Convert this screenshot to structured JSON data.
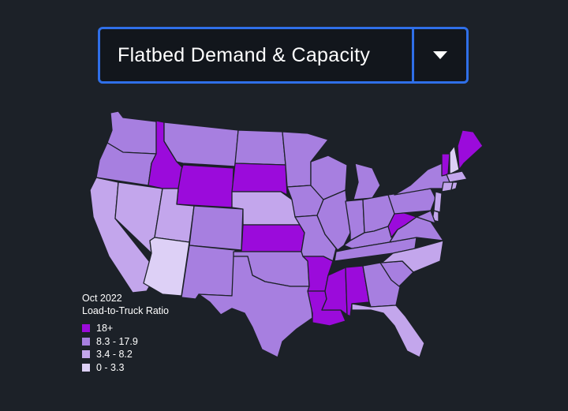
{
  "selector": {
    "label": "Flatbed Demand & Capacity",
    "icon": "chevron-down-icon"
  },
  "legend": {
    "period": "Oct 2022",
    "metric": "Load-to-Truck Ratio",
    "items": [
      {
        "label": "18+",
        "color": "#9b0bdb"
      },
      {
        "label": "8.3 - 17.9",
        "color": "#a77fe0"
      },
      {
        "label": "3.4 - 8.2",
        "color": "#c3a6ec"
      },
      {
        "label": "0 - 3.3",
        "color": "#ddd0f6"
      }
    ]
  },
  "map": {
    "border_color": "#1c2128",
    "states": [
      {
        "code": "WA",
        "class": 1
      },
      {
        "code": "OR",
        "class": 1
      },
      {
        "code": "CA",
        "class": 2
      },
      {
        "code": "NV",
        "class": 2
      },
      {
        "code": "ID",
        "class": 0
      },
      {
        "code": "MT",
        "class": 1
      },
      {
        "code": "WY",
        "class": 0
      },
      {
        "code": "UT",
        "class": 2
      },
      {
        "code": "AZ",
        "class": 3
      },
      {
        "code": "CO",
        "class": 1
      },
      {
        "code": "NM",
        "class": 1
      },
      {
        "code": "ND",
        "class": 1
      },
      {
        "code": "SD",
        "class": 0
      },
      {
        "code": "NE",
        "class": 2
      },
      {
        "code": "KS",
        "class": 0
      },
      {
        "code": "OK",
        "class": 1
      },
      {
        "code": "TX",
        "class": 1
      },
      {
        "code": "MN",
        "class": 1
      },
      {
        "code": "IA",
        "class": 1
      },
      {
        "code": "MO",
        "class": 1
      },
      {
        "code": "AR",
        "class": 0
      },
      {
        "code": "LA",
        "class": 0
      },
      {
        "code": "WI",
        "class": 1
      },
      {
        "code": "IL",
        "class": 1
      },
      {
        "code": "MI",
        "class": 1
      },
      {
        "code": "IN",
        "class": 1
      },
      {
        "code": "OH",
        "class": 1
      },
      {
        "code": "KY",
        "class": 1
      },
      {
        "code": "TN",
        "class": 1
      },
      {
        "code": "MS",
        "class": 0
      },
      {
        "code": "AL",
        "class": 0
      },
      {
        "code": "GA",
        "class": 1
      },
      {
        "code": "FL",
        "class": 2
      },
      {
        "code": "SC",
        "class": 1
      },
      {
        "code": "NC",
        "class": 2
      },
      {
        "code": "VA",
        "class": 1
      },
      {
        "code": "WV",
        "class": 0
      },
      {
        "code": "PA",
        "class": 1
      },
      {
        "code": "NY",
        "class": 1
      },
      {
        "code": "VT",
        "class": 0
      },
      {
        "code": "NH",
        "class": 3
      },
      {
        "code": "ME",
        "class": 0
      },
      {
        "code": "MA",
        "class": 2
      },
      {
        "code": "CT",
        "class": 2
      },
      {
        "code": "RI",
        "class": 2
      },
      {
        "code": "NJ",
        "class": 2
      },
      {
        "code": "DE",
        "class": 2
      },
      {
        "code": "MD",
        "class": 1
      }
    ]
  }
}
